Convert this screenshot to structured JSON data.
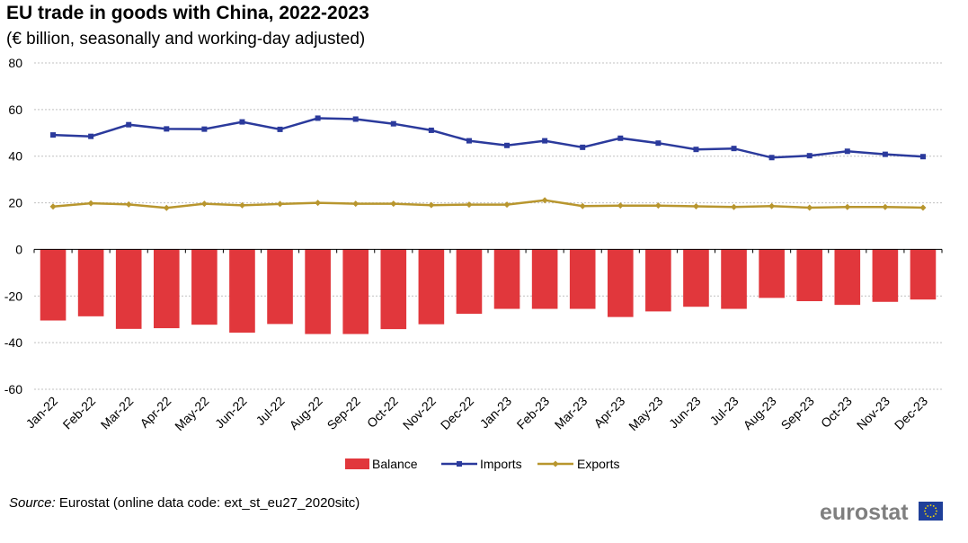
{
  "title": "EU trade in goods with China, 2022-2023",
  "subtitle": "(€ billion, seasonally and working-day adjusted)",
  "source_label": "Source:",
  "source_text": " Eurostat (online data code: ext_st_eu27_2020sitc)",
  "logo_text": "eurostat",
  "colors": {
    "balance": "#e1373c",
    "imports": "#2b3a9c",
    "exports": "#b8962e",
    "grid": "#c0c0c0"
  },
  "chart_data": {
    "type": "bar",
    "categories": [
      "Jan-22",
      "Feb-22",
      "Mar-22",
      "Apr-22",
      "May-22",
      "Jun-22",
      "Jul-22",
      "Aug-22",
      "Sep-22",
      "Oct-22",
      "Nov-22",
      "Dec-22",
      "Jan-23",
      "Feb-23",
      "Mar-23",
      "Apr-23",
      "May-23",
      "Jun-23",
      "Jul-23",
      "Aug-23",
      "Sep-23",
      "Oct-23",
      "Nov-23",
      "Dec-23"
    ],
    "yticks": [
      80,
      60,
      40,
      20,
      0,
      -20,
      -40,
      -60
    ],
    "ylim": [
      -60,
      80
    ],
    "grid": true,
    "legend_position": "bottom",
    "series": [
      {
        "name": "Balance",
        "kind": "bar",
        "values": [
          -30.5,
          -28.7,
          -34.1,
          -33.8,
          -32.3,
          -35.7,
          -32.0,
          -36.3,
          -36.3,
          -34.2,
          -32.1,
          -27.6,
          -25.5,
          -25.5,
          -25.5,
          -29.0,
          -26.6,
          -24.6,
          -25.5,
          -20.8,
          -22.2,
          -23.8,
          -22.5,
          -21.5
        ]
      },
      {
        "name": "Imports",
        "kind": "line",
        "values": [
          49.1,
          48.5,
          53.5,
          51.7,
          51.6,
          54.7,
          51.5,
          56.3,
          55.9,
          53.9,
          51.1,
          46.6,
          44.6,
          46.6,
          43.8,
          47.7,
          45.6,
          42.9,
          43.3,
          39.4,
          40.2,
          42.1,
          40.8,
          39.8
        ]
      },
      {
        "name": "Exports",
        "kind": "line",
        "values": [
          18.4,
          19.8,
          19.3,
          17.8,
          19.6,
          18.9,
          19.5,
          20.0,
          19.6,
          19.6,
          19.0,
          19.2,
          19.2,
          21.1,
          18.6,
          18.8,
          18.8,
          18.5,
          18.2,
          18.6,
          17.9,
          18.2,
          18.2,
          17.9
        ]
      }
    ]
  }
}
